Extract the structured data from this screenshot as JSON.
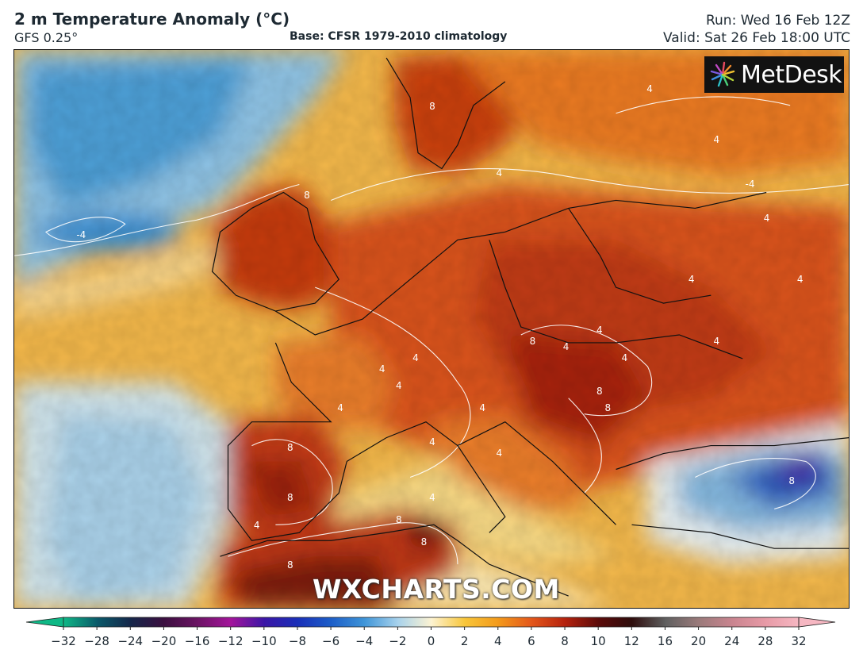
{
  "header": {
    "title": "2 m Temperature Anomaly (°C)",
    "model": "GFS 0.25°",
    "base": "Base: CFSR 1979-2010 climatology",
    "run": "Run: Wed 16 Feb 12Z",
    "valid": "Valid: Sat 26 Feb 18:00 UTC"
  },
  "logo": {
    "text": "MetDesk",
    "icon": "burst-logo-icon"
  },
  "watermark": "WXCHARTS.COM",
  "map": {
    "contour_labels": [
      {
        "text": "4",
        "lon": 0.5,
        "lat": 0.8
      },
      {
        "text": "-4",
        "lon": 0.08,
        "lat": 0.33
      },
      {
        "text": "8",
        "lon": 0.35,
        "lat": 0.26
      },
      {
        "text": "8",
        "lon": 0.5,
        "lat": 0.1
      },
      {
        "text": "4",
        "lon": 0.58,
        "lat": 0.22
      },
      {
        "text": "4",
        "lon": 0.76,
        "lat": 0.07
      },
      {
        "text": "4",
        "lon": 0.84,
        "lat": 0.16
      },
      {
        "text": "-4",
        "lon": 0.88,
        "lat": 0.24
      },
      {
        "text": "4",
        "lon": 0.9,
        "lat": 0.3
      },
      {
        "text": "4",
        "lon": 0.94,
        "lat": 0.41
      },
      {
        "text": "4",
        "lon": 0.81,
        "lat": 0.41
      },
      {
        "text": "4",
        "lon": 0.84,
        "lat": 0.52
      },
      {
        "text": "4",
        "lon": 0.7,
        "lat": 0.5
      },
      {
        "text": "8",
        "lon": 0.62,
        "lat": 0.52
      },
      {
        "text": "4",
        "lon": 0.66,
        "lat": 0.53
      },
      {
        "text": "4",
        "lon": 0.73,
        "lat": 0.55
      },
      {
        "text": "4",
        "lon": 0.48,
        "lat": 0.55
      },
      {
        "text": "4",
        "lon": 0.44,
        "lat": 0.57
      },
      {
        "text": "4",
        "lon": 0.46,
        "lat": 0.6
      },
      {
        "text": "4",
        "lon": 0.39,
        "lat": 0.64
      },
      {
        "text": "8",
        "lon": 0.7,
        "lat": 0.61
      },
      {
        "text": "4",
        "lon": 0.56,
        "lat": 0.64
      },
      {
        "text": "4",
        "lon": 0.58,
        "lat": 0.72
      },
      {
        "text": "4",
        "lon": 0.5,
        "lat": 0.7
      },
      {
        "text": "8",
        "lon": 0.33,
        "lat": 0.71
      },
      {
        "text": "8",
        "lon": 0.33,
        "lat": 0.8
      },
      {
        "text": "4",
        "lon": 0.29,
        "lat": 0.85
      },
      {
        "text": "8",
        "lon": 0.46,
        "lat": 0.84
      },
      {
        "text": "8",
        "lon": 0.49,
        "lat": 0.88
      },
      {
        "text": "8",
        "lon": 0.33,
        "lat": 0.92
      },
      {
        "text": "8",
        "lon": 0.93,
        "lat": 0.77
      },
      {
        "text": "8",
        "lon": 0.71,
        "lat": 0.64
      }
    ]
  },
  "colorbar": {
    "ticks": [
      "−32",
      "−28",
      "−24",
      "−20",
      "−16",
      "−12",
      "−10",
      "−8",
      "−6",
      "−4",
      "−2",
      "0",
      "2",
      "4",
      "6",
      "8",
      "10",
      "12",
      "16",
      "20",
      "24",
      "28",
      "32"
    ],
    "colors": [
      "#0fb886",
      "#0a5a6a",
      "#15274a",
      "#3b0f3f",
      "#6b1463",
      "#a4159b",
      "#3b16a6",
      "#1a2fb8",
      "#1d5ec8",
      "#3f95d8",
      "#a8d2ec",
      "#fdf3d2",
      "#f8c63a",
      "#f39a1b",
      "#e4571b",
      "#b5220e",
      "#5c0b0a",
      "#2e0d0c",
      "#5f5f5f",
      "#9a7a7a",
      "#c9848f",
      "#e79aa6",
      "#f6b7c2"
    ]
  }
}
